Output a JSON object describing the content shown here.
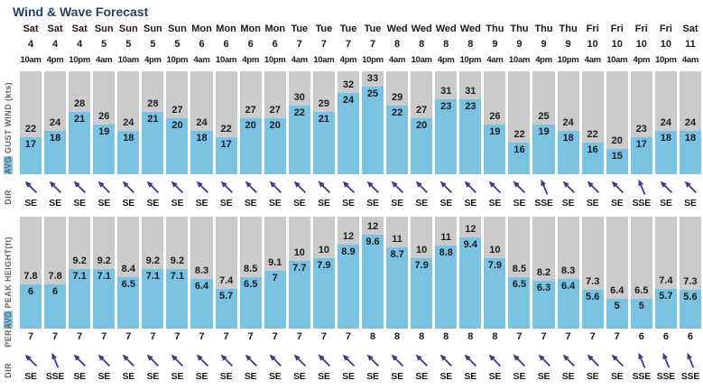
{
  "title": "Wind & Wave Forecast",
  "axis_labels": {
    "wind_highlight": "AVG",
    "wind_rest": " GUST WIND (kts)",
    "wind_dir": "DIR",
    "wave_highlight": "AVG",
    "wave_rest": " PEAK HEIGHT(ft)",
    "period": "PER",
    "wave_dir": "DIR"
  },
  "colors": {
    "bar_blue": "#7bc1e2",
    "bar_gray": "#cbcbcb",
    "arrow": "#3b3b8a",
    "title": "#224366",
    "text_dark": "#1c1c1c",
    "axis_text": "#666666"
  },
  "chart_data": {
    "type": "bar",
    "title": "Wind & Wave Forecast",
    "sections": [
      {
        "name": "wind",
        "label": "AVG GUST WIND (kts)",
        "series": [
          "gust_kts",
          "avg_wind_kts"
        ]
      },
      {
        "name": "wind_direction",
        "label": "DIR"
      },
      {
        "name": "wave",
        "label": "AVG PEAK HEIGHT(ft)",
        "series": [
          "peak_ft",
          "avg_height_ft"
        ]
      },
      {
        "name": "period",
        "label": "PER"
      },
      {
        "name": "swell_direction",
        "label": "DIR"
      }
    ],
    "legend_position": "none",
    "grid": false,
    "columns": [
      {
        "day": "Sat",
        "date": "4",
        "time": "10am",
        "gust_kts": "22",
        "avg_wind_kts": "17",
        "wind_dir": "SE",
        "peak_ft": "7.8",
        "avg_height_ft": "6",
        "period_s": "7",
        "swell_dir": "SE"
      },
      {
        "day": "Sat",
        "date": "4",
        "time": "4pm",
        "gust_kts": "24",
        "avg_wind_kts": "18",
        "wind_dir": "SE",
        "peak_ft": "7.8",
        "avg_height_ft": "6",
        "period_s": "7",
        "swell_dir": "SSE"
      },
      {
        "day": "Sat",
        "date": "4",
        "time": "10pm",
        "gust_kts": "28",
        "avg_wind_kts": "21",
        "wind_dir": "SE",
        "peak_ft": "9.2",
        "avg_height_ft": "7.1",
        "period_s": "7",
        "swell_dir": "SE"
      },
      {
        "day": "Sun",
        "date": "5",
        "time": "4am",
        "gust_kts": "26",
        "avg_wind_kts": "19",
        "wind_dir": "SE",
        "peak_ft": "9.2",
        "avg_height_ft": "7.1",
        "period_s": "7",
        "swell_dir": "SE"
      },
      {
        "day": "Sun",
        "date": "5",
        "time": "10am",
        "gust_kts": "24",
        "avg_wind_kts": "18",
        "wind_dir": "SE",
        "peak_ft": "8.4",
        "avg_height_ft": "6.5",
        "period_s": "7",
        "swell_dir": "SE"
      },
      {
        "day": "Sun",
        "date": "5",
        "time": "4pm",
        "gust_kts": "28",
        "avg_wind_kts": "21",
        "wind_dir": "SE",
        "peak_ft": "9.2",
        "avg_height_ft": "7.1",
        "period_s": "7",
        "swell_dir": "SE"
      },
      {
        "day": "Sun",
        "date": "5",
        "time": "10pm",
        "gust_kts": "27",
        "avg_wind_kts": "20",
        "wind_dir": "SE",
        "peak_ft": "9.2",
        "avg_height_ft": "7.1",
        "period_s": "7",
        "swell_dir": "SE"
      },
      {
        "day": "Mon",
        "date": "6",
        "time": "4am",
        "gust_kts": "24",
        "avg_wind_kts": "18",
        "wind_dir": "SE",
        "peak_ft": "8.3",
        "avg_height_ft": "6.4",
        "period_s": "7",
        "swell_dir": "SE"
      },
      {
        "day": "Mon",
        "date": "6",
        "time": "10am",
        "gust_kts": "22",
        "avg_wind_kts": "17",
        "wind_dir": "SE",
        "peak_ft": "7.4",
        "avg_height_ft": "5.7",
        "period_s": "7",
        "swell_dir": "SE"
      },
      {
        "day": "Mon",
        "date": "6",
        "time": "4pm",
        "gust_kts": "27",
        "avg_wind_kts": "20",
        "wind_dir": "SE",
        "peak_ft": "8.5",
        "avg_height_ft": "6.5",
        "period_s": "7",
        "swell_dir": "SE"
      },
      {
        "day": "Mon",
        "date": "6",
        "time": "10pm",
        "gust_kts": "27",
        "avg_wind_kts": "20",
        "wind_dir": "SE",
        "peak_ft": "9.1",
        "avg_height_ft": "7",
        "period_s": "7",
        "swell_dir": "SE"
      },
      {
        "day": "Tue",
        "date": "7",
        "time": "4am",
        "gust_kts": "30",
        "avg_wind_kts": "22",
        "wind_dir": "SE",
        "peak_ft": "10",
        "avg_height_ft": "7.7",
        "period_s": "7",
        "swell_dir": "SE"
      },
      {
        "day": "Tue",
        "date": "7",
        "time": "10am",
        "gust_kts": "29",
        "avg_wind_kts": "21",
        "wind_dir": "SE",
        "peak_ft": "10",
        "avg_height_ft": "7.9",
        "period_s": "7",
        "swell_dir": "SE"
      },
      {
        "day": "Tue",
        "date": "7",
        "time": "4pm",
        "gust_kts": "32",
        "avg_wind_kts": "24",
        "wind_dir": "SE",
        "peak_ft": "12",
        "avg_height_ft": "8.9",
        "period_s": "7",
        "swell_dir": "SE"
      },
      {
        "day": "Tue",
        "date": "7",
        "time": "10pm",
        "gust_kts": "33",
        "avg_wind_kts": "25",
        "wind_dir": "SE",
        "peak_ft": "12",
        "avg_height_ft": "9.6",
        "period_s": "8",
        "swell_dir": "SE"
      },
      {
        "day": "Wed",
        "date": "8",
        "time": "4am",
        "gust_kts": "29",
        "avg_wind_kts": "22",
        "wind_dir": "SE",
        "peak_ft": "11",
        "avg_height_ft": "8.7",
        "period_s": "8",
        "swell_dir": "SE"
      },
      {
        "day": "Wed",
        "date": "8",
        "time": "10am",
        "gust_kts": "27",
        "avg_wind_kts": "20",
        "wind_dir": "SE",
        "peak_ft": "10",
        "avg_height_ft": "7.9",
        "period_s": "8",
        "swell_dir": "SE"
      },
      {
        "day": "Wed",
        "date": "8",
        "time": "4pm",
        "gust_kts": "31",
        "avg_wind_kts": "23",
        "wind_dir": "SE",
        "peak_ft": "11",
        "avg_height_ft": "8.8",
        "period_s": "8",
        "swell_dir": "SE"
      },
      {
        "day": "Wed",
        "date": "8",
        "time": "10pm",
        "gust_kts": "31",
        "avg_wind_kts": "23",
        "wind_dir": "SE",
        "peak_ft": "12",
        "avg_height_ft": "9.4",
        "period_s": "8",
        "swell_dir": "SE"
      },
      {
        "day": "Thu",
        "date": "9",
        "time": "4am",
        "gust_kts": "26",
        "avg_wind_kts": "19",
        "wind_dir": "SE",
        "peak_ft": "10",
        "avg_height_ft": "7.9",
        "period_s": "8",
        "swell_dir": "SE"
      },
      {
        "day": "Thu",
        "date": "9",
        "time": "10am",
        "gust_kts": "22",
        "avg_wind_kts": "16",
        "wind_dir": "SE",
        "peak_ft": "8.5",
        "avg_height_ft": "6.5",
        "period_s": "7",
        "swell_dir": "SE"
      },
      {
        "day": "Thu",
        "date": "9",
        "time": "4pm",
        "gust_kts": "25",
        "avg_wind_kts": "19",
        "wind_dir": "SSE",
        "peak_ft": "8.2",
        "avg_height_ft": "6.3",
        "period_s": "7",
        "swell_dir": "SE"
      },
      {
        "day": "Thu",
        "date": "9",
        "time": "10pm",
        "gust_kts": "24",
        "avg_wind_kts": "18",
        "wind_dir": "SE",
        "peak_ft": "8.3",
        "avg_height_ft": "6.4",
        "period_s": "7",
        "swell_dir": "SE"
      },
      {
        "day": "Fri",
        "date": "10",
        "time": "4am",
        "gust_kts": "22",
        "avg_wind_kts": "16",
        "wind_dir": "SE",
        "peak_ft": "7.3",
        "avg_height_ft": "5.6",
        "period_s": "7",
        "swell_dir": "SE"
      },
      {
        "day": "Fri",
        "date": "10",
        "time": "10am",
        "gust_kts": "20",
        "avg_wind_kts": "15",
        "wind_dir": "SE",
        "peak_ft": "6.4",
        "avg_height_ft": "5",
        "period_s": "7",
        "swell_dir": "SE"
      },
      {
        "day": "Fri",
        "date": "10",
        "time": "4pm",
        "gust_kts": "23",
        "avg_wind_kts": "17",
        "wind_dir": "SSE",
        "peak_ft": "6.5",
        "avg_height_ft": "5",
        "period_s": "6",
        "swell_dir": "SSE"
      },
      {
        "day": "Fri",
        "date": "10",
        "time": "10pm",
        "gust_kts": "24",
        "avg_wind_kts": "18",
        "wind_dir": "SE",
        "peak_ft": "7.4",
        "avg_height_ft": "5.7",
        "period_s": "6",
        "swell_dir": "SSE"
      },
      {
        "day": "Sat",
        "date": "11",
        "time": "4am",
        "gust_kts": "24",
        "avg_wind_kts": "18",
        "wind_dir": "SE",
        "peak_ft": "7.3",
        "avg_height_ft": "5.6",
        "period_s": "6",
        "swell_dir": "SSE"
      }
    ]
  }
}
